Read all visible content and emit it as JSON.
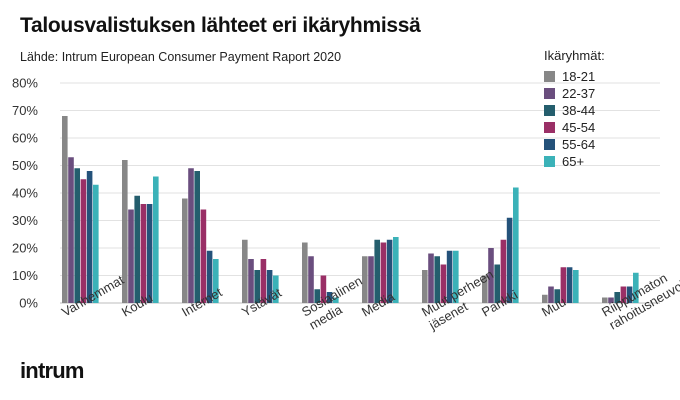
{
  "chart_data": {
    "type": "bar",
    "title": "Talousvalistuksen lähteet eri ikäryhmissä",
    "source": "Lähde:  Intrum European Consumer Payment Raport 2020",
    "legend_title": "Ikäryhmät:",
    "legend_position": "top-right",
    "grid": true,
    "ylim": [
      0,
      80
    ],
    "yticks": [
      "0%",
      "10%",
      "20%",
      "30%",
      "40%",
      "50%",
      "60%",
      "70%",
      "80%"
    ],
    "categories": [
      [
        "Vanhemmat"
      ],
      [
        "Koulu"
      ],
      [
        "Internet"
      ],
      [
        "Ystävät"
      ],
      [
        "Sosiaalinen",
        "media"
      ],
      [
        "Media"
      ],
      [
        "Muut perheen",
        "jäsenet"
      ],
      [
        "Pankki"
      ],
      [
        "Muu"
      ],
      [
        "Riippumaton",
        "rahoitusneuvoja"
      ]
    ],
    "series": [
      {
        "name": "18-21",
        "color": "#878787",
        "values": [
          68,
          52,
          38,
          23,
          22,
          17,
          12,
          10,
          3,
          2
        ]
      },
      {
        "name": "22-37",
        "color": "#6a4e7e",
        "values": [
          53,
          34,
          49,
          16,
          17,
          17,
          18,
          20,
          6,
          2
        ]
      },
      {
        "name": "38-44",
        "color": "#245e6d",
        "values": [
          49,
          39,
          48,
          12,
          5,
          23,
          17,
          14,
          5,
          4
        ]
      },
      {
        "name": "45-54",
        "color": "#9a2f66",
        "values": [
          45,
          36,
          34,
          16,
          10,
          22,
          14,
          23,
          13,
          6
        ]
      },
      {
        "name": "55-64",
        "color": "#24527a",
        "values": [
          48,
          36,
          19,
          12,
          4,
          23,
          19,
          31,
          13,
          6
        ]
      },
      {
        "name": "65+",
        "color": "#3bb2b8",
        "values": [
          43,
          46,
          16,
          10,
          2,
          24,
          19,
          42,
          12,
          11
        ]
      }
    ]
  },
  "brand": {
    "logo_text": "intrum"
  }
}
